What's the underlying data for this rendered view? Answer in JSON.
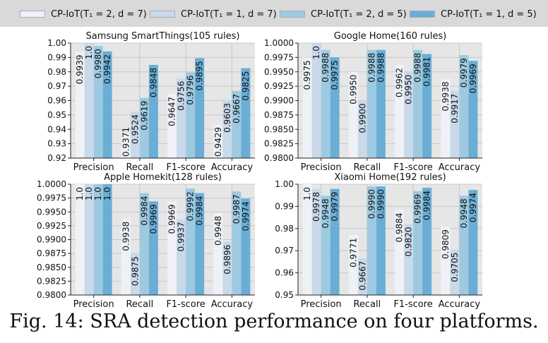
{
  "legend": [
    {
      "label": "CP-IoT(T₁ = 2, d = 7)",
      "color": "#eef2f7"
    },
    {
      "label": "CP-IoT(T₁ = 1, d = 7)",
      "color": "#c9d9ea"
    },
    {
      "label": "CP-IoT(T₁ = 2, d = 5)",
      "color": "#9ecae1"
    },
    {
      "label": "CP-IoT(T₁ = 1, d = 5)",
      "color": "#6aaed6"
    }
  ],
  "caption": "Fig. 14: SRA detection performance on four platforms.",
  "chart_data": [
    {
      "type": "bar",
      "title": "Samsung SmartThings(105 rules)",
      "categories": [
        "Precision",
        "Recall",
        "F1-score",
        "Accuracy"
      ],
      "ylim": [
        0.92,
        1.0
      ],
      "yticks": [
        "0.92",
        "0.93",
        "0.94",
        "0.95",
        "0.96",
        "0.97",
        "0.98",
        "0.99",
        "1.00"
      ],
      "grid": true,
      "series": [
        {
          "name": "CP-IoT(T₁ = 2, d = 7)",
          "values": [
            0.9939,
            0.9371,
            0.9647,
            0.9429
          ],
          "labels": [
            "0.9939",
            "0.9371",
            "0.9647",
            "0.9429"
          ]
        },
        {
          "name": "CP-IoT(T₁ = 1, d = 7)",
          "values": [
            1.0,
            0.9524,
            0.9756,
            0.9603
          ],
          "labels": [
            "1.0",
            "0.9524",
            "0.9756",
            "0.9603"
          ]
        },
        {
          "name": "CP-IoT(T₁ = 2, d = 5)",
          "values": [
            0.998,
            0.9619,
            0.9796,
            0.9667
          ],
          "labels": [
            "0.9980",
            "0.9619",
            "0.9796",
            "0.9667"
          ]
        },
        {
          "name": "CP-IoT(T₁ = 1, d = 5)",
          "values": [
            0.9942,
            0.9848,
            0.9895,
            0.9825
          ],
          "labels": [
            "0.9942",
            "0.9848",
            "0.9895",
            "0.9825"
          ]
        }
      ]
    },
    {
      "type": "bar",
      "title": "Google Home(160 rules)",
      "categories": [
        "Precision",
        "Recall",
        "F1-score",
        "Accuracy"
      ],
      "ylim": [
        0.98,
        1.0
      ],
      "yticks": [
        "0.9800",
        "0.9825",
        "0.9850",
        "0.9875",
        "0.9900",
        "0.9925",
        "0.9950",
        "0.9975",
        "1.0000"
      ],
      "grid": true,
      "series": [
        {
          "name": "CP-IoT(T₁ = 2, d = 7)",
          "values": [
            0.9975,
            0.995,
            0.9962,
            0.9938
          ],
          "labels": [
            "0.9975",
            "0.9950",
            "0.9962",
            "0.9938"
          ]
        },
        {
          "name": "CP-IoT(T₁ = 1, d = 7)",
          "values": [
            1.0,
            0.99,
            0.995,
            0.9917
          ],
          "labels": [
            "1.0",
            "0.9900",
            "0.9950",
            "0.9917"
          ]
        },
        {
          "name": "CP-IoT(T₁ = 2, d = 5)",
          "values": [
            0.9988,
            0.9988,
            0.9988,
            0.9979
          ],
          "labels": [
            "0.9988",
            "0.9988",
            "0.9988",
            "0.9979"
          ]
        },
        {
          "name": "CP-IoT(T₁ = 1, d = 5)",
          "values": [
            0.9975,
            0.9988,
            0.9981,
            0.9969
          ],
          "labels": [
            "0.9975",
            "0.9988",
            "0.9981",
            "0.9969"
          ]
        }
      ]
    },
    {
      "type": "bar",
      "title": "Apple Homekit(128 rules)",
      "categories": [
        "Precision",
        "Recall",
        "F1-score",
        "Accuracy"
      ],
      "ylim": [
        0.98,
        1.0
      ],
      "yticks": [
        "0.9800",
        "0.9825",
        "0.9850",
        "0.9875",
        "0.9900",
        "0.9925",
        "0.9950",
        "0.9975",
        "1.0000"
      ],
      "grid": true,
      "series": [
        {
          "name": "CP-IoT(T₁ = 2, d = 7)",
          "values": [
            1.0,
            0.9938,
            0.9969,
            0.9948
          ],
          "labels": [
            "1.0",
            "0.9938",
            "0.9969",
            "0.9948"
          ]
        },
        {
          "name": "CP-IoT(T₁ = 1, d = 7)",
          "values": [
            1.0,
            0.9875,
            0.9937,
            0.9896
          ],
          "labels": [
            "1.0",
            "0.9875",
            "0.9937",
            "0.9896"
          ]
        },
        {
          "name": "CP-IoT(T₁ = 2, d = 5)",
          "values": [
            1.0,
            0.9984,
            0.9992,
            0.9987
          ],
          "labels": [
            "1.0",
            "0.9984",
            "0.9992",
            "0.9987"
          ]
        },
        {
          "name": "CP-IoT(T₁ = 1, d = 5)",
          "values": [
            1.0,
            0.9969,
            0.9984,
            0.9974
          ],
          "labels": [
            "1.0",
            "0.9969",
            "0.9984",
            "0.9974"
          ]
        }
      ]
    },
    {
      "type": "bar",
      "title": "Xiaomi Home(192 rules)",
      "categories": [
        "Precision",
        "Recall",
        "F1-score",
        "Accuracy"
      ],
      "ylim": [
        0.95,
        1.0
      ],
      "yticks": [
        "0.95",
        "0.96",
        "0.97",
        "0.98",
        "0.99",
        "1.00"
      ],
      "grid": true,
      "series": [
        {
          "name": "CP-IoT(T₁ = 2, d = 7)",
          "values": [
            1.0,
            0.9771,
            0.9884,
            0.9809
          ],
          "labels": [
            "1.0",
            "0.9771",
            "0.9884",
            "0.9809"
          ]
        },
        {
          "name": "CP-IoT(T₁ = 1, d = 7)",
          "values": [
            0.9978,
            0.9667,
            0.982,
            0.9705
          ],
          "labels": [
            "0.9978",
            "0.9667",
            "0.9820",
            "0.9705"
          ]
        },
        {
          "name": "CP-IoT(T₁ = 2, d = 5)",
          "values": [
            0.9948,
            0.999,
            0.9969,
            0.9948
          ],
          "labels": [
            "0.9948",
            "0.9990",
            "0.9969",
            "0.9948"
          ]
        },
        {
          "name": "CP-IoT(T₁ = 1, d = 5)",
          "values": [
            0.9979,
            0.999,
            0.9984,
            0.9974
          ],
          "labels": [
            "0.9979",
            "0.9990",
            "0.9984",
            "0.9974"
          ]
        }
      ]
    }
  ]
}
